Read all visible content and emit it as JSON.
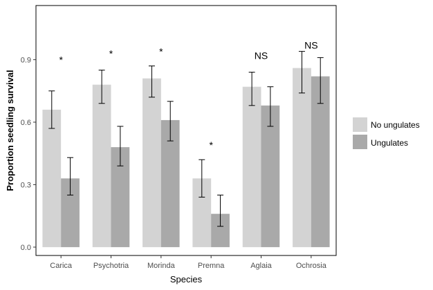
{
  "chart_data": {
    "type": "bar",
    "xlabel": "Species",
    "ylabel": "Proportion seedling survival",
    "categories": [
      "Carica",
      "Psychotria",
      "Morinda",
      "Premna",
      "Aglaia",
      "Ochrosia"
    ],
    "ylim": [
      -0.04,
      1.16
    ],
    "yticks": [
      0.0,
      0.3,
      0.6,
      0.9
    ],
    "ytick_labels": [
      "0.0",
      "0.3",
      "0.6",
      "0.9"
    ],
    "grid": false,
    "legend_position": "right",
    "series": [
      {
        "name": "No ungulates",
        "color": "#d3d3d3",
        "values": [
          0.66,
          0.78,
          0.81,
          0.33,
          0.77,
          0.86
        ],
        "err_low": [
          0.57,
          0.69,
          0.72,
          0.24,
          0.68,
          0.74
        ],
        "err_high": [
          0.75,
          0.85,
          0.87,
          0.42,
          0.84,
          0.94
        ]
      },
      {
        "name": "Ungulates",
        "color": "#a9a9a9",
        "values": [
          0.33,
          0.48,
          0.61,
          0.16,
          0.68,
          0.82
        ],
        "err_low": [
          0.25,
          0.39,
          0.51,
          0.1,
          0.58,
          0.69
        ],
        "err_high": [
          0.43,
          0.58,
          0.7,
          0.25,
          0.77,
          0.91
        ]
      }
    ],
    "annotations": [
      {
        "category": "Carica",
        "text": "*",
        "y": 0.9
      },
      {
        "category": "Psychotria",
        "text": "*",
        "y": 0.93
      },
      {
        "category": "Morinda",
        "text": "*",
        "y": 0.94
      },
      {
        "category": "Premna",
        "text": "*",
        "y": 0.49
      },
      {
        "category": "Aglaia",
        "text": "NS",
        "y": 0.92
      },
      {
        "category": "Ochrosia",
        "text": "NS",
        "y": 0.97
      }
    ]
  }
}
